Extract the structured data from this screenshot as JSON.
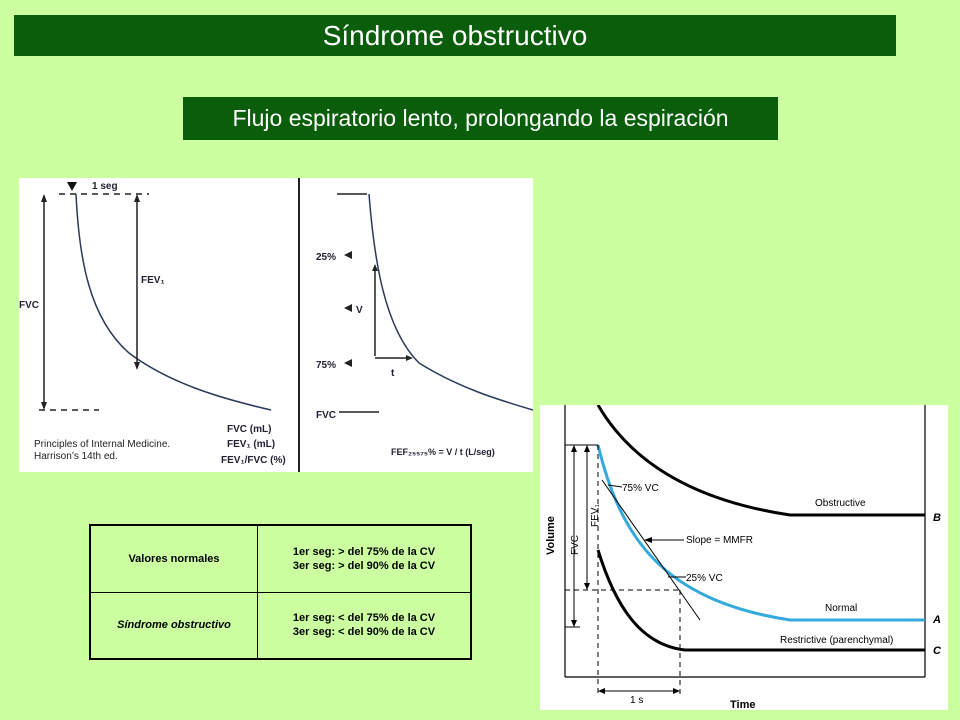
{
  "title": "Síndrome obstructivo",
  "subtitle": "Flujo espiratorio lento, prolongando la espiración",
  "left_figure": {
    "label_1seg": "1 seg",
    "label_fev1": "FEV₁",
    "label_fvc": "FVC",
    "label_25": "25%",
    "label_v": "V",
    "label_75": "75%",
    "label_t": "t",
    "label_fvc2": "FVC",
    "legend_line1": "FVC (mL)",
    "legend_line2": "FEV₁ (mL)",
    "legend_line3": "FEV₁/FVC (%)",
    "formula": "FEF₂₅₅₇₅% = V / t (L/seg)"
  },
  "citation": "Principles of Internal Medicine. Harrison’s 14th ed.",
  "table": {
    "rows": [
      {
        "label": "Valores normales",
        "line1": "1er seg: > del 75% de la CV",
        "line2": "3er seg: > del 90% de la CV"
      },
      {
        "label": "Síndrome obstructivo",
        "line1": "1er seg: < del 75% de la CV",
        "line2": "3er seg: < del 90% de la CV"
      }
    ]
  },
  "right_figure": {
    "y_axis": "Volume",
    "x_axis": "Time",
    "fvc": "FVC",
    "fev1": "FEV₁",
    "vc75": "75% VC",
    "vc25": "25% VC",
    "slope": "Slope = MMFR",
    "obstructive": "Obstructive",
    "normal": "Normal",
    "restrictive": "Restrictive (parenchymal)",
    "letter_b": "B",
    "letter_a": "A",
    "letter_c": "C",
    "one_s": "1 s"
  },
  "colors": {
    "header_bg": "#0a5d0a",
    "page_bg": "#ccffa0",
    "normal_curve": "#33aadd"
  }
}
